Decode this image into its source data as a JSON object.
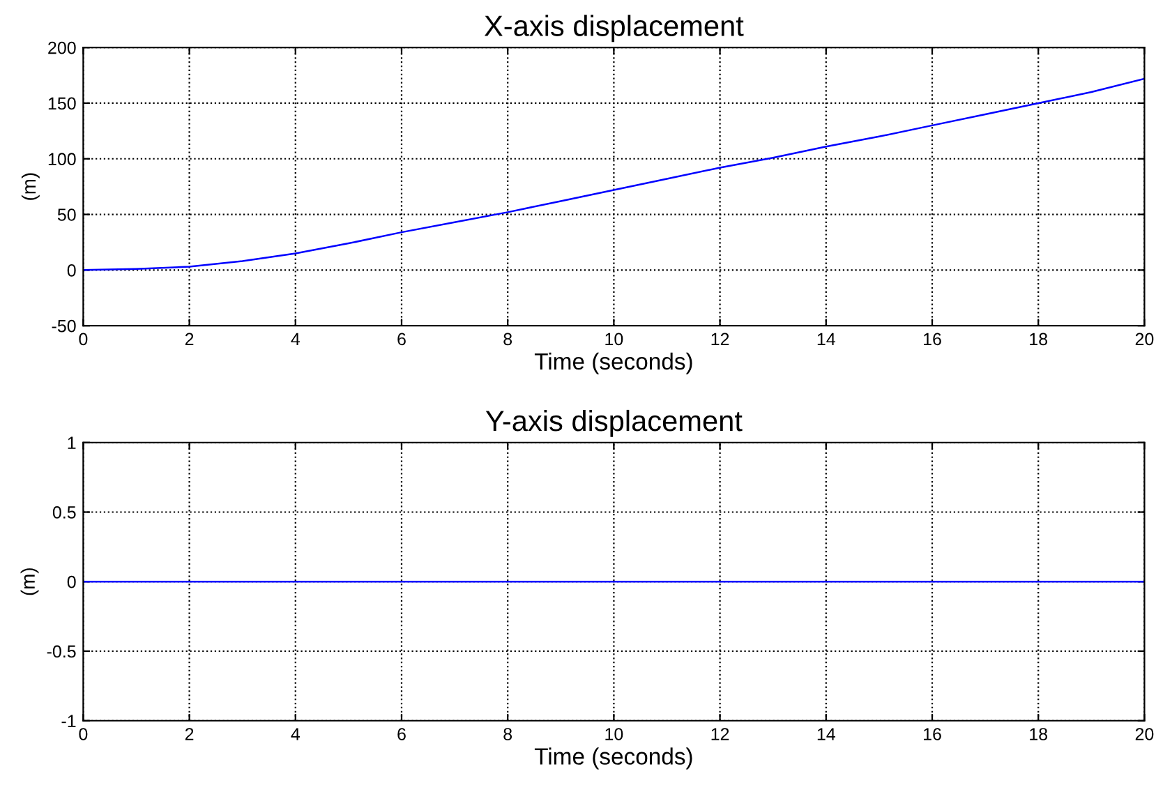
{
  "chart_data": [
    {
      "type": "line",
      "title": "X-axis displacement",
      "xlabel": "Time (seconds)",
      "ylabel": "(m)",
      "x": [
        0,
        1,
        2,
        3,
        4,
        5,
        6,
        7,
        8,
        9,
        10,
        11,
        12,
        13,
        14,
        15,
        16,
        17,
        18,
        19,
        20
      ],
      "series": [
        {
          "color": "#0000ff",
          "values": [
            0,
            1,
            3,
            8,
            15,
            24,
            34,
            43,
            52,
            62,
            72,
            82,
            92,
            101,
            111,
            120,
            130,
            140,
            150,
            160,
            172
          ]
        }
      ],
      "xlim": [
        0,
        20
      ],
      "ylim": [
        -50,
        200
      ],
      "xticks": [
        0,
        2,
        4,
        6,
        8,
        10,
        12,
        14,
        16,
        18,
        20
      ],
      "yticks": [
        -50,
        0,
        50,
        100,
        150,
        200
      ],
      "grid": true,
      "line_style": "solid",
      "marker": "none"
    },
    {
      "type": "line",
      "title": "Y-axis displacement",
      "xlabel": "Time (seconds)",
      "ylabel": "(m)",
      "x": [
        0,
        20
      ],
      "series": [
        {
          "color": "#0000ff",
          "values": [
            0,
            0
          ]
        }
      ],
      "xlim": [
        0,
        20
      ],
      "ylim": [
        -1,
        1
      ],
      "xticks": [
        0,
        2,
        4,
        6,
        8,
        10,
        12,
        14,
        16,
        18,
        20
      ],
      "yticks": [
        -1,
        -0.5,
        0,
        0.5,
        1
      ],
      "grid": true,
      "line_style": "solid",
      "marker": "none"
    }
  ]
}
